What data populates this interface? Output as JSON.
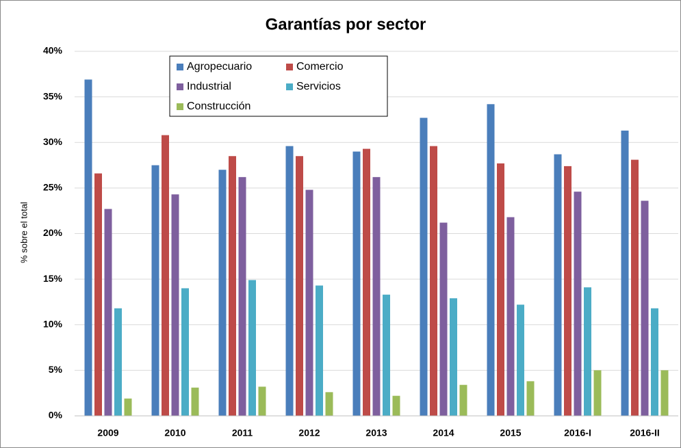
{
  "chart_data": {
    "type": "bar",
    "title": "Garantías por sector",
    "y_label": "% sobre el total",
    "categories": [
      "2009",
      "2010",
      "2011",
      "2012",
      "2013",
      "2014",
      "2015",
      "2016-I",
      "2016-II"
    ],
    "series": [
      {
        "name": "Agropecuario",
        "color": "#4a7ebb",
        "values": [
          36.9,
          27.5,
          27.0,
          29.6,
          29.0,
          32.7,
          34.2,
          28.7,
          31.3
        ]
      },
      {
        "name": "Comercio",
        "color": "#be4b48",
        "values": [
          26.6,
          30.8,
          28.5,
          28.5,
          29.3,
          29.6,
          27.7,
          27.4,
          28.1
        ]
      },
      {
        "name": "Industrial",
        "color": "#7e5f9e",
        "values": [
          22.7,
          24.3,
          26.2,
          24.8,
          26.2,
          21.2,
          21.8,
          24.6,
          23.6
        ]
      },
      {
        "name": "Servicios",
        "color": "#4bacc6",
        "values": [
          11.8,
          14.0,
          14.9,
          14.3,
          13.3,
          12.9,
          12.2,
          14.1,
          11.8
        ]
      },
      {
        "name": "Construcción",
        "color": "#9bbb59",
        "values": [
          1.9,
          3.1,
          3.2,
          2.6,
          2.2,
          3.4,
          3.8,
          5.0,
          5.0
        ]
      }
    ],
    "ylim": [
      0,
      40
    ],
    "yticks": [
      {
        "value": 0,
        "label": "0%"
      },
      {
        "value": 5,
        "label": "5%"
      },
      {
        "value": 10,
        "label": "10%"
      },
      {
        "value": 15,
        "label": "15%"
      },
      {
        "value": 20,
        "label": "20%"
      },
      {
        "value": 25,
        "label": "25%"
      },
      {
        "value": 30,
        "label": "30%"
      },
      {
        "value": 35,
        "label": "35%"
      },
      {
        "value": 40,
        "label": "40%"
      }
    ],
    "grid": true,
    "legend": "top-left"
  }
}
